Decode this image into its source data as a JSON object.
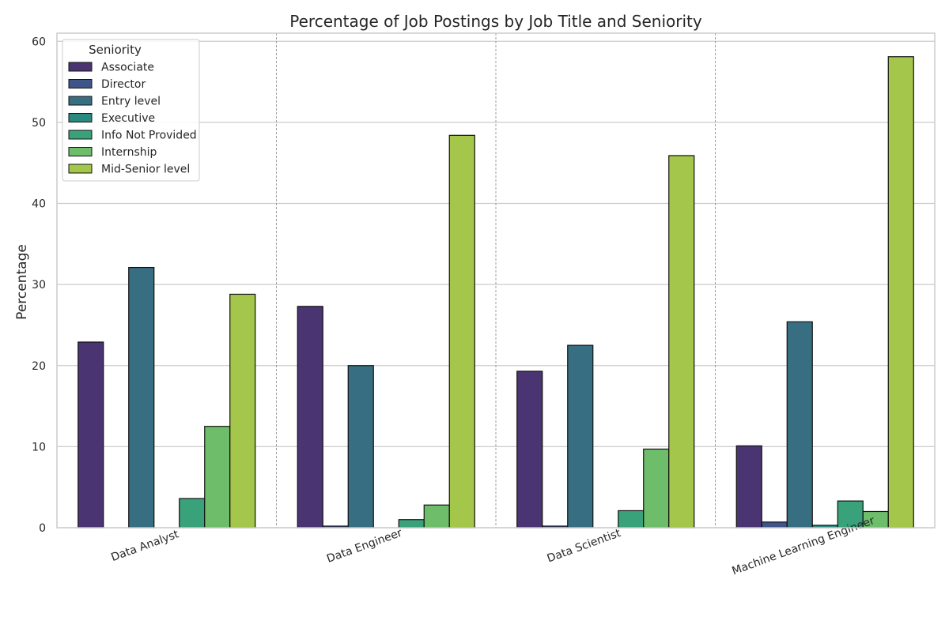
{
  "chart_data": {
    "type": "bar",
    "title": "Percentage of Job Postings by Job Title and Seniority",
    "xlabel": "",
    "ylabel": "Percentage",
    "ylim": [
      0,
      61
    ],
    "yticks": [
      0,
      10,
      20,
      30,
      40,
      50,
      60
    ],
    "grid": true,
    "legend": {
      "title": "Seniority",
      "placement": "top-left"
    },
    "categories": [
      "Data Analyst",
      "Data Engineer",
      "Data Scientist",
      "Machine Learning Engineer"
    ],
    "series": [
      {
        "name": "Associate",
        "color": "#4a3472",
        "values": [
          22.9,
          27.3,
          19.3,
          10.1
        ]
      },
      {
        "name": "Director",
        "color": "#3f5589",
        "values": [
          0,
          0.2,
          0.2,
          0.7
        ]
      },
      {
        "name": "Entry level",
        "color": "#386e82",
        "values": [
          32.1,
          20.0,
          22.5,
          25.4
        ]
      },
      {
        "name": "Executive",
        "color": "#2a8a7f",
        "values": [
          0,
          0,
          0,
          0.3
        ]
      },
      {
        "name": "Info Not Provided",
        "color": "#3aa27a",
        "values": [
          3.6,
          1.0,
          2.1,
          3.3
        ]
      },
      {
        "name": "Internship",
        "color": "#6dbd6b",
        "values": [
          12.5,
          2.8,
          9.7,
          2.0
        ]
      },
      {
        "name": "Mid-Senior level",
        "color": "#a4c64a",
        "values": [
          28.8,
          48.4,
          45.9,
          58.1
        ]
      }
    ]
  }
}
